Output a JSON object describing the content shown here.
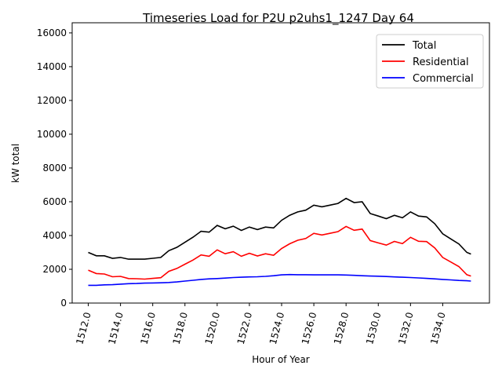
{
  "chart_data": {
    "type": "line",
    "title": "Timeseries Load for P2U p2uhs1_1247  Day 64",
    "xlabel": "Hour of Year",
    "ylabel": "kW total",
    "xlim": [
      1511,
      1536.9
    ],
    "ylim": [
      0,
      16600
    ],
    "xticks": [
      1512,
      1514,
      1516,
      1518,
      1520,
      1522,
      1524,
      1526,
      1528,
      1530,
      1532,
      1534
    ],
    "xtick_labels": [
      "1512.0",
      "1514.0",
      "1516.0",
      "1518.0",
      "1520.0",
      "1522.0",
      "1524.0",
      "1526.0",
      "1528.0",
      "1530.0",
      "1532.0",
      "1534.0"
    ],
    "yticks": [
      0,
      2000,
      4000,
      6000,
      8000,
      10000,
      12000,
      14000,
      16000
    ],
    "ytick_labels": [
      "0",
      "2000",
      "4000",
      "6000",
      "8000",
      "10000",
      "12000",
      "14000",
      "16000"
    ],
    "legend_position": "top-right",
    "x": [
      1512,
      1512.5,
      1513,
      1513.5,
      1514,
      1514.5,
      1515,
      1515.5,
      1516,
      1516.5,
      1517,
      1517.5,
      1518,
      1518.5,
      1519,
      1519.5,
      1520,
      1520.5,
      1521,
      1521.5,
      1522,
      1522.5,
      1523,
      1523.5,
      1524,
      1524.5,
      1525,
      1525.5,
      1526,
      1526.5,
      1527,
      1527.5,
      1528,
      1528.5,
      1529,
      1529.5,
      1530,
      1530.5,
      1531,
      1531.5,
      1532,
      1532.5,
      1533,
      1533.5,
      1534,
      1534.5,
      1535,
      1535.5,
      1535.75
    ],
    "series": [
      {
        "name": "Total",
        "color": "#000000",
        "values": [
          3000,
          2800,
          2800,
          2650,
          2700,
          2600,
          2600,
          2600,
          2650,
          2700,
          3100,
          3300,
          3600,
          3900,
          4250,
          4200,
          4600,
          4400,
          4550,
          4300,
          4500,
          4350,
          4500,
          4450,
          4900,
          5200,
          5400,
          5500,
          5800,
          5700,
          5800,
          5900,
          6200,
          5950,
          6000,
          5300,
          5150,
          5000,
          5200,
          5050,
          5400,
          5150,
          5100,
          4700,
          4100,
          3800,
          3500,
          3000,
          2900
        ]
      },
      {
        "name": "Residential",
        "color": "#ff0000",
        "values": [
          1950,
          1750,
          1720,
          1560,
          1580,
          1450,
          1440,
          1420,
          1460,
          1500,
          1880,
          2050,
          2300,
          2550,
          2850,
          2770,
          3150,
          2920,
          3040,
          2770,
          2950,
          2790,
          2920,
          2830,
          3230,
          3510,
          3720,
          3820,
          4130,
          4030,
          4130,
          4230,
          4540,
          4310,
          4380,
          3700,
          3560,
          3430,
          3650,
          3520,
          3890,
          3660,
          3640,
          3270,
          2700,
          2430,
          2160,
          1680,
          1600
        ]
      },
      {
        "name": "Commercial",
        "color": "#0000ff",
        "values": [
          1050,
          1050,
          1080,
          1090,
          1120,
          1150,
          1160,
          1180,
          1190,
          1200,
          1220,
          1250,
          1300,
          1350,
          1400,
          1430,
          1450,
          1480,
          1510,
          1530,
          1550,
          1560,
          1580,
          1620,
          1670,
          1690,
          1680,
          1680,
          1670,
          1670,
          1670,
          1670,
          1660,
          1640,
          1620,
          1600,
          1590,
          1570,
          1550,
          1530,
          1510,
          1490,
          1460,
          1430,
          1400,
          1370,
          1340,
          1320,
          1300
        ]
      }
    ]
  }
}
